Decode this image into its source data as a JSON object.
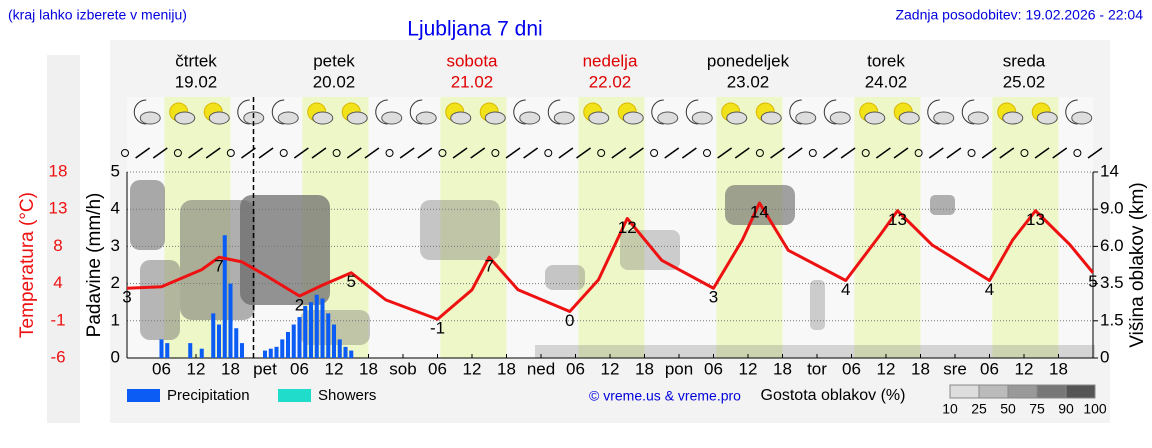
{
  "header": {
    "hint": "(kraj lahko izberete v meniju)",
    "title": "Ljubljana 7 dni",
    "updated": "Zadnja posodobitev: 19.02.2026 - 22:04"
  },
  "chart_data": {
    "type": "meteogram",
    "days": [
      {
        "name": "čtrtek",
        "date": "19.02",
        "color": "#000000"
      },
      {
        "name": "petek",
        "date": "20.02",
        "color": "#000000"
      },
      {
        "name": "sobota",
        "date": "21.02",
        "color": "#e00000"
      },
      {
        "name": "nedelja",
        "date": "22.02",
        "color": "#e00000"
      },
      {
        "name": "ponedeljek",
        "date": "23.02",
        "color": "#000000"
      },
      {
        "name": "torek",
        "date": "24.02",
        "color": "#000000"
      },
      {
        "name": "sreda",
        "date": "25.02",
        "color": "#000000"
      }
    ],
    "xlim": [
      0,
      168
    ],
    "xticks": [
      {
        "value": 6,
        "label": "06"
      },
      {
        "value": 12,
        "label": "12"
      },
      {
        "value": 18,
        "label": "18"
      },
      {
        "value": 24,
        "label": "pet"
      },
      {
        "value": 30,
        "label": "06"
      },
      {
        "value": 36,
        "label": "12"
      },
      {
        "value": 42,
        "label": "18"
      },
      {
        "value": 48,
        "label": "sob"
      },
      {
        "value": 54,
        "label": "06"
      },
      {
        "value": 60,
        "label": "12"
      },
      {
        "value": 66,
        "label": "18"
      },
      {
        "value": 72,
        "label": "ned"
      },
      {
        "value": 78,
        "label": "06"
      },
      {
        "value": 84,
        "label": "12"
      },
      {
        "value": 90,
        "label": "18"
      },
      {
        "value": 96,
        "label": "pon"
      },
      {
        "value": 102,
        "label": "06"
      },
      {
        "value": 108,
        "label": "12"
      },
      {
        "value": 114,
        "label": "18"
      },
      {
        "value": 120,
        "label": "tor"
      },
      {
        "value": 126,
        "label": "06"
      },
      {
        "value": 132,
        "label": "12"
      },
      {
        "value": 138,
        "label": "18"
      },
      {
        "value": 144,
        "label": "sre"
      },
      {
        "value": 150,
        "label": "06"
      },
      {
        "value": 156,
        "label": "12"
      },
      {
        "value": 162,
        "label": "18"
      }
    ],
    "ylabel": "Padavine (mm/h)",
    "ylim": [
      0,
      5
    ],
    "yticks": [
      0,
      1,
      2,
      3,
      4,
      5
    ],
    "grid": true,
    "temperature_label": "Temperatura (°C)",
    "temperature_lim": [
      -6,
      18
    ],
    "temperature_ticks": [
      -6,
      {
        "value": -1.2,
        "label": "-1"
      },
      {
        "value": 3.6,
        "label": "4"
      },
      {
        "value": 8.4,
        "label": "8"
      },
      {
        "value": 13.2,
        "label": "13"
      },
      18
    ],
    "y2label": "Višina oblakov (km)",
    "y2ticks": [
      0,
      1.5,
      3.5,
      {
        "value": 6,
        "label": "6.0"
      },
      {
        "value": 9,
        "label": "9.0"
      },
      14
    ],
    "temperature": {
      "color": "#ee1111",
      "x": [
        0,
        6,
        13,
        16,
        20,
        24,
        30,
        34,
        39,
        45,
        54,
        60,
        63,
        68,
        77,
        82,
        87,
        93,
        102,
        107,
        110,
        115,
        125,
        131,
        134,
        140,
        150,
        154,
        158,
        164,
        168
      ],
      "values": [
        3,
        3.2,
        5.4,
        7,
        6.4,
        4.7,
        2,
        3.4,
        5,
        1.5,
        -1,
        2.8,
        7,
        2.8,
        0,
        4.1,
        12,
        6.6,
        3,
        9.2,
        14,
        7.9,
        4,
        9.9,
        13,
        8.6,
        4,
        9.2,
        13,
        8.6,
        5
      ]
    },
    "temperature_labels": {
      "x": [
        0,
        16,
        30,
        39,
        54,
        63,
        77,
        87,
        102,
        110,
        125,
        134,
        150,
        158,
        168
      ],
      "values": [
        3,
        7,
        2,
        5,
        -1,
        7,
        0,
        12,
        3,
        14,
        4,
        13,
        4,
        13,
        5
      ]
    },
    "precipitation": {
      "name": "Precipitation",
      "color": "#0a5cf5",
      "x": [
        6,
        7,
        11,
        13,
        15,
        16,
        17,
        18,
        19,
        20,
        24,
        25,
        26,
        27,
        28,
        29,
        30,
        31,
        32,
        33,
        34,
        35,
        36,
        37,
        38,
        39
      ],
      "values": [
        0.5,
        0.4,
        0.4,
        0.25,
        1.2,
        0.9,
        3.3,
        2.0,
        0.8,
        0.4,
        0.2,
        0.25,
        0.3,
        0.5,
        0.7,
        0.9,
        1.1,
        1.4,
        1.5,
        1.7,
        1.6,
        1.2,
        0.9,
        0.5,
        0.3,
        0.2
      ]
    },
    "showers": {
      "name": "Showers",
      "color": "#20dccb"
    },
    "now": 22,
    "credit": "© vreme.us & vreme.pro",
    "cloud_density": {
      "title": "Gostota oblakov (%)",
      "ticks": [
        10,
        25,
        50,
        75,
        90,
        100
      ],
      "colors": [
        "#dddddd",
        "#bbbbbb",
        "#999999",
        "#777777",
        "#555555"
      ]
    }
  }
}
